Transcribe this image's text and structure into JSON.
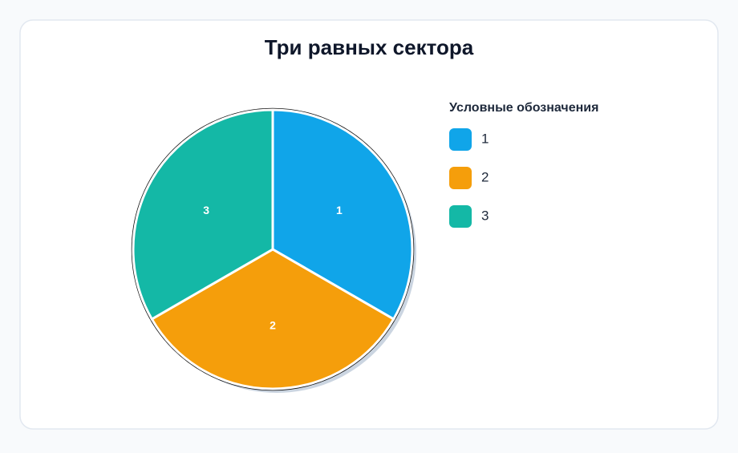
{
  "chart_data": {
    "type": "pie",
    "title": "Три равных сектора",
    "categories": [
      "1",
      "2",
      "3"
    ],
    "values": [
      1,
      1,
      1
    ],
    "colors": [
      "#10a5e9",
      "#f59e0b",
      "#14b8a6"
    ],
    "legend_title": "Условные обозначения",
    "legend": "right"
  }
}
